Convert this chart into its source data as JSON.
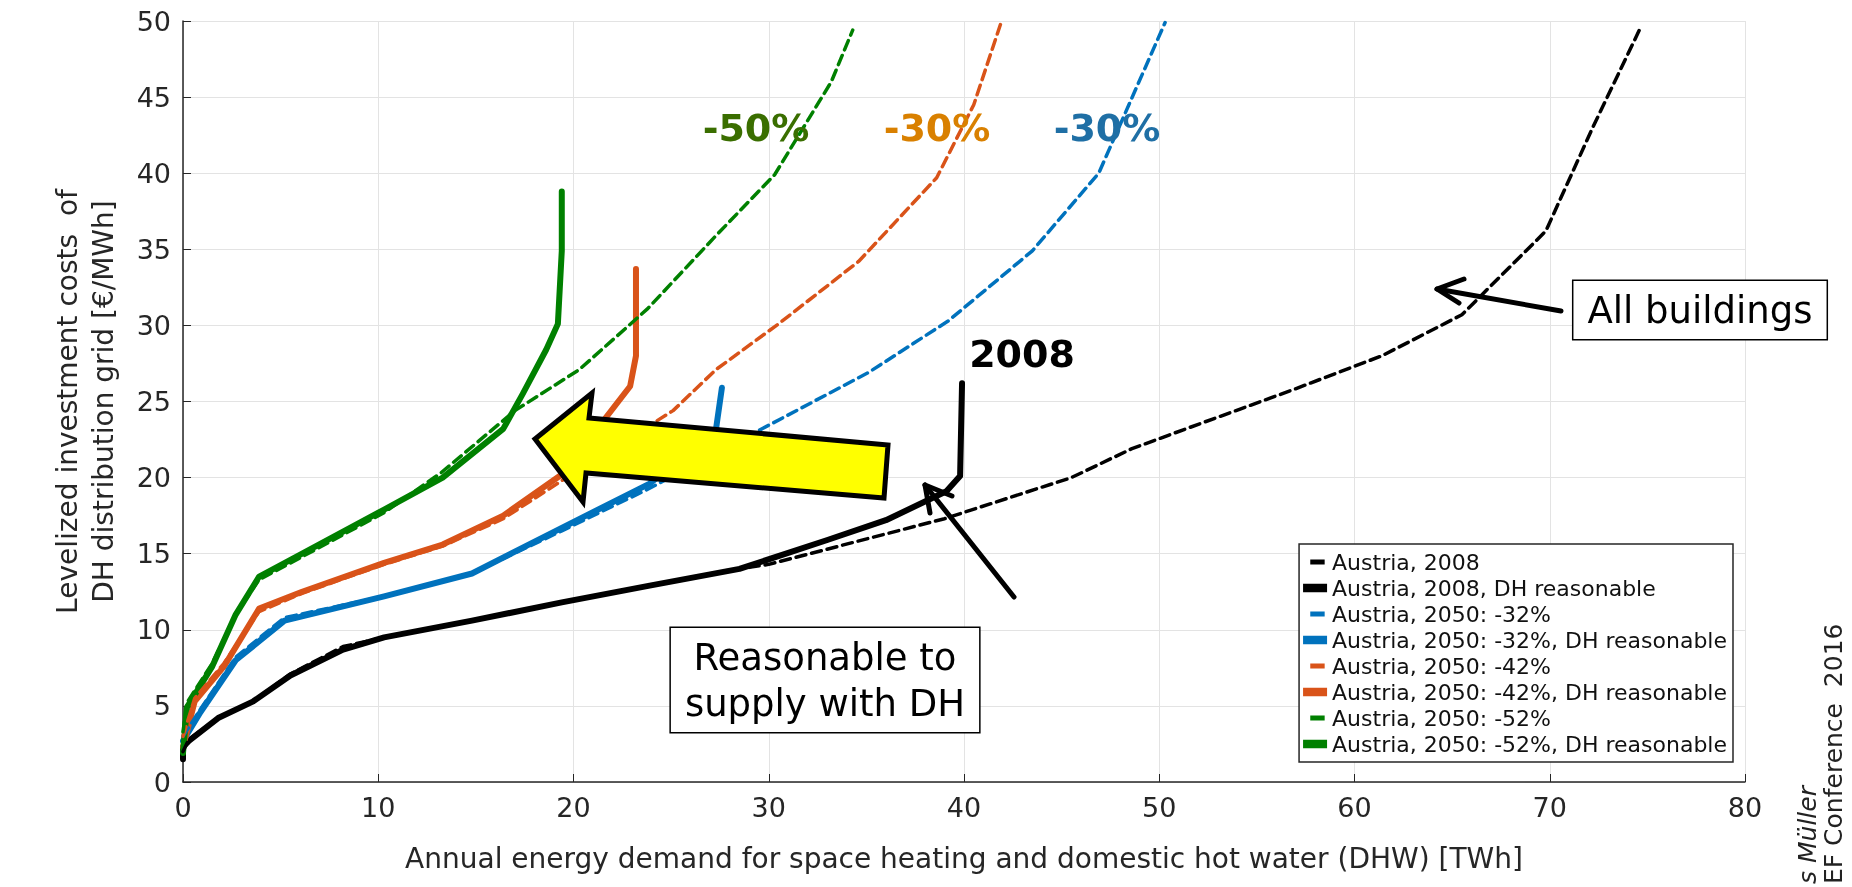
{
  "chart_data": {
    "type": "line",
    "xlabel": "Annual energy demand for space heating and domestic hot water (DHW) [TWh]",
    "ylabel": "Levelized investment costs  of\nDH distribution grid [€/MWh]",
    "xlim": [
      0,
      80
    ],
    "xticks": [
      0,
      10,
      20,
      30,
      40,
      50,
      60,
      70,
      80
    ],
    "ylim": [
      0,
      50
    ],
    "yticks": [
      0,
      5,
      10,
      15,
      20,
      25,
      30,
      35,
      40,
      45,
      50
    ],
    "grid": true,
    "legend": "bottom right",
    "marker": "none",
    "series": [
      {
        "name": "Austria, 2008",
        "color": "#000000",
        "line_style": "dashed",
        "x": [
          0,
          0.3,
          1.8,
          3.6,
          5.5,
          8.2,
          10.3,
          14.8,
          19.4,
          23.9,
          28.5,
          30,
          34.5,
          39,
          45.5,
          48.6,
          52,
          56.7,
          61.4,
          65.5,
          69.8,
          72.2,
          74.7
        ],
        "values": [
          2,
          2.8,
          4.2,
          5.3,
          7.1,
          8.9,
          9.5,
          10.6,
          11.8,
          12.9,
          14,
          14.3,
          15.8,
          17.3,
          20,
          21.9,
          23.5,
          25.7,
          28,
          30.7,
          36.2,
          43,
          49.7
        ]
      },
      {
        "name": "Austria, 2008, DH reasonable",
        "color": "#000000",
        "line_style": "solid",
        "x": [
          0,
          0,
          0.3,
          1.8,
          3.6,
          5.5,
          8.2,
          10.3,
          14.8,
          19.4,
          23.9,
          28.5,
          33,
          36,
          39.1,
          39.8,
          39.9
        ],
        "values": [
          1.5,
          2.3,
          2.7,
          4.2,
          5.3,
          7,
          8.7,
          9.5,
          10.6,
          11.8,
          12.9,
          14,
          15.9,
          17.2,
          19.1,
          20.1,
          26.2
        ]
      },
      {
        "name": "Austria, 2050: -32%",
        "color": "#0072bd",
        "line_style": "dashed",
        "x": [
          0,
          0.9,
          2.7,
          5.2,
          10.3,
          14.8,
          19.4,
          23.9,
          30,
          35.1,
          39.2,
          43.5,
          46.9,
          50.3
        ],
        "values": [
          3,
          4.8,
          8.2,
          10.8,
          12.2,
          13.7,
          16.5,
          19.3,
          null,
          26.9,
          30.3,
          34.9,
          40,
          49.9
        ]
      },
      {
        "name": "Austria, 2050: -32%, DH reasonable",
        "color": "#0072bd",
        "line_style": "solid",
        "x": [
          0,
          0.9,
          2.7,
          5.2,
          10.3,
          14.8,
          19.4,
          23.9,
          27.3,
          27.6
        ],
        "values": [
          2.7,
          4.6,
          8,
          10.6,
          12.2,
          13.7,
          16.7,
          19.6,
          23.2,
          25.9
        ]
      },
      {
        "name": "Austria, 2050: -42%",
        "color": "#d95319",
        "line_style": "dashed",
        "x": [
          0,
          0.6,
          2.1,
          3.9,
          6.1,
          10.3,
          13.3,
          16.4,
          19.4,
          21.4,
          25.1,
          27.3,
          30.5,
          34.6,
          38.6,
          40.5,
          41.9
        ],
        "values": [
          3,
          5.5,
          7.8,
          11.2,
          12.4,
          14.3,
          15.5,
          17.3,
          19.8,
          null,
          24.4,
          27.1,
          30.1,
          34.2,
          39.7,
          44.5,
          49.9
        ]
      },
      {
        "name": "Austria, 2050: -42%, DH reasonable",
        "color": "#d95319",
        "line_style": "solid",
        "x": [
          0,
          0.6,
          2.1,
          3.9,
          6.1,
          10.3,
          13.3,
          16.4,
          19.4,
          21.8,
          22.9,
          23.2,
          23.2
        ],
        "values": [
          2.3,
          5.3,
          7.6,
          11.4,
          12.5,
          14.4,
          15.6,
          17.5,
          20.2,
          null,
          26,
          28,
          33.7
        ]
      },
      {
        "name": "Austria, 2050: -52%",
        "color": "#008000",
        "line_style": "dashed",
        "x": [
          0,
          0.2,
          1.5,
          2.7,
          3.9,
          6.1,
          10.3,
          13.2,
          17,
          20.3,
          23.8,
          27.3,
          30.3,
          33.2,
          34.3
        ],
        "values": [
          3.3,
          5.2,
          7.8,
          11,
          13.3,
          14.8,
          17.7,
          20.3,
          24.4,
          27.1,
          31.1,
          35.9,
          39.9,
          46,
          49.4
        ]
      },
      {
        "name": "Austria, 2050: -52%, DH reasonable",
        "color": "#008000",
        "line_style": "solid",
        "x": [
          0,
          0.2,
          1.5,
          2.7,
          3.9,
          6.1,
          10.3,
          13.3,
          16.4,
          17.4,
          18.6,
          19.2,
          19.4,
          19.4
        ],
        "values": [
          1.9,
          4.9,
          7.6,
          11,
          13.5,
          15,
          17.9,
          20,
          23.2,
          25.5,
          28.4,
          30.1,
          34.9,
          38.8
        ]
      }
    ],
    "annotations": [
      "-50%",
      "-30%",
      "-30%",
      "2008",
      "Reasonable to\nsupply with DH",
      "All buildings",
      "s Müller",
      "EF Conference  2016"
    ]
  }
}
